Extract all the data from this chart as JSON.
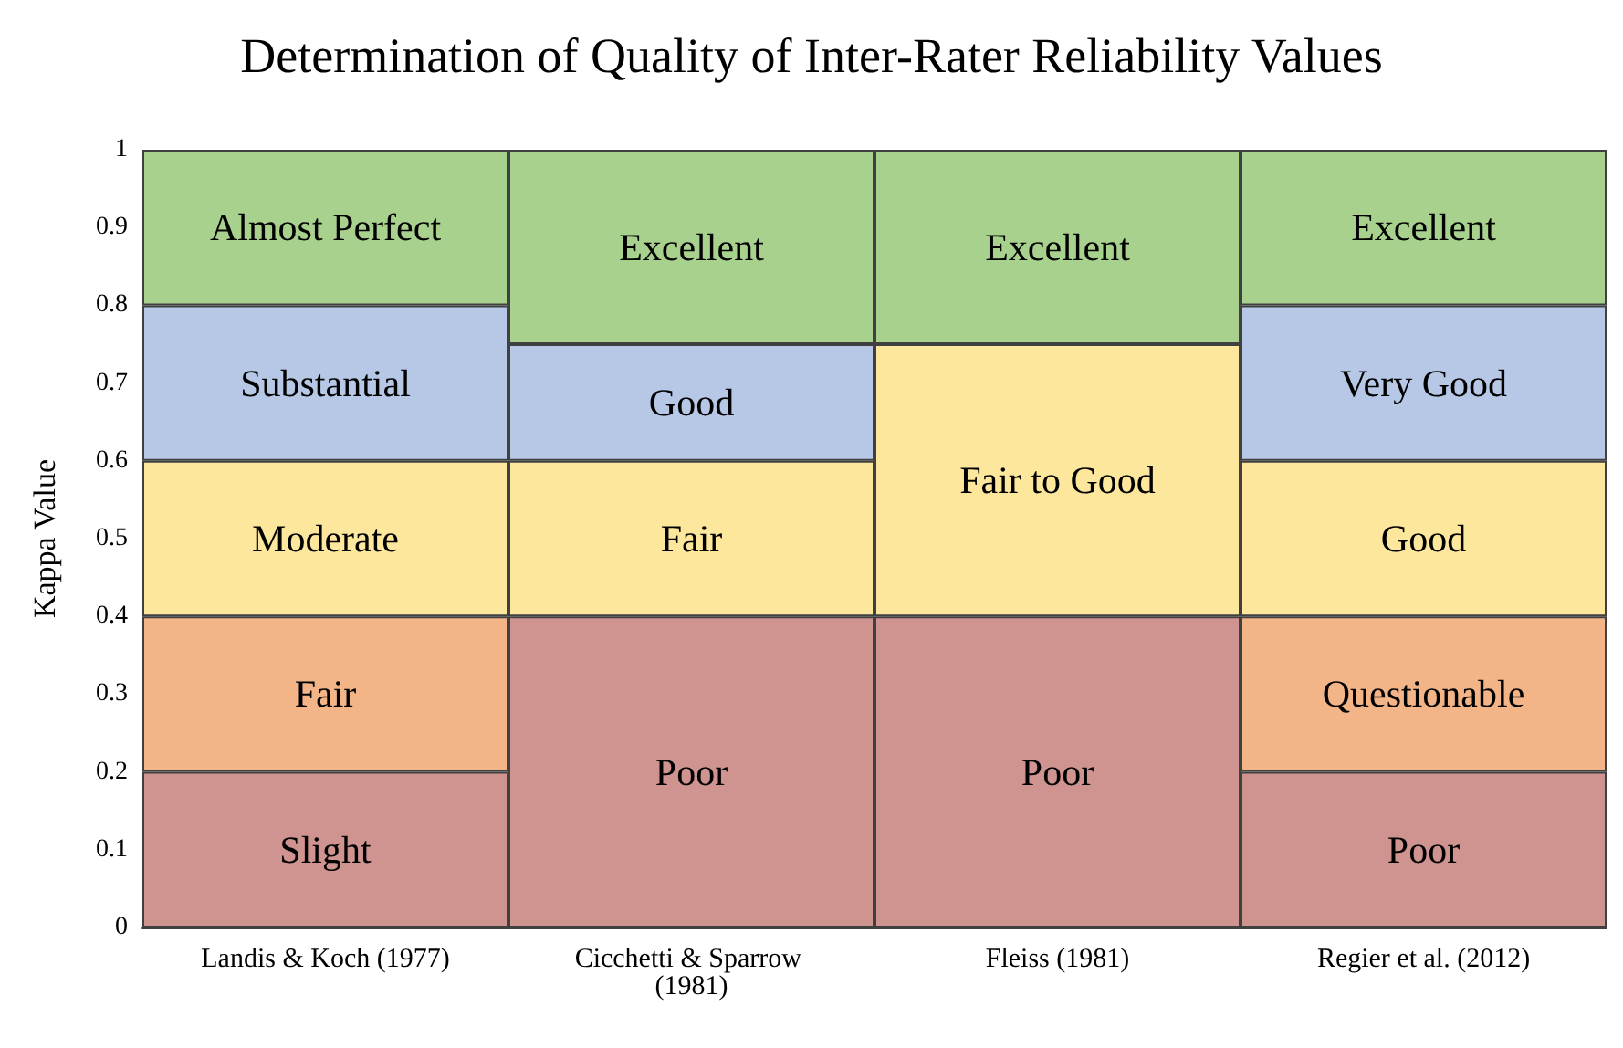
{
  "chart_data": {
    "type": "bar",
    "title": "Determination of Quality of Inter-Rater Reliability Values",
    "ylabel": "Kappa Value",
    "categories": [
      "Landis & Koch (1977)",
      "Cicchetti & Sparrow (1981)",
      "Fleiss (1981)",
      "Regier et al. (2012)"
    ],
    "stacked": true,
    "ylim": [
      0,
      1
    ],
    "yticks": [
      0,
      0.1,
      0.2,
      0.3,
      0.4,
      0.5,
      0.6,
      0.7,
      0.8,
      0.9,
      1
    ],
    "grid": false,
    "series": [
      {
        "color": "#d09490",
        "values": [
          0.2,
          0.4,
          0.4,
          0.2
        ],
        "value_labels": [
          "Slight",
          "Poor",
          "Poor",
          "Poor"
        ]
      },
      {
        "color": "#f3b487",
        "values": [
          0.2,
          null,
          null,
          0.2
        ],
        "value_labels": [
          "Fair",
          null,
          null,
          "Questionable"
        ]
      },
      {
        "color": "#fde79c",
        "values": [
          0.2,
          0.2,
          0.35,
          0.2
        ],
        "value_labels": [
          "Moderate",
          "Fair",
          "Fair to Good",
          "Good"
        ]
      },
      {
        "color": "#b6c8e6",
        "values": [
          0.2,
          0.15,
          null,
          0.2
        ],
        "value_labels": [
          "Substantial",
          "Good",
          null,
          "Very Good"
        ]
      },
      {
        "color": "#a9d18e",
        "values": [
          0.2,
          0.25,
          0.25,
          0.2
        ],
        "value_labels": [
          "Almost Perfect",
          "Excellent",
          "Excellent",
          "Excellent"
        ]
      }
    ]
  }
}
